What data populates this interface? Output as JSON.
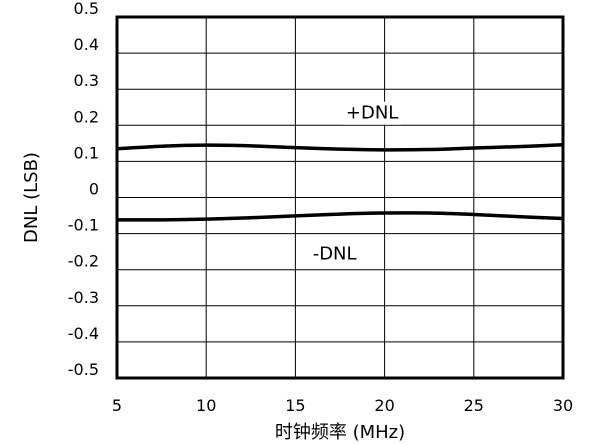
{
  "chart_data": {
    "type": "line",
    "title": "",
    "xlabel": "时钟频率 (MHz)",
    "ylabel": "DNL (LSB)",
    "xlim": [
      5,
      30
    ],
    "ylim": [
      -0.5,
      0.5
    ],
    "x_ticks": [
      5,
      10,
      15,
      20,
      25,
      30
    ],
    "x_tick_labels": [
      "5",
      "10",
      "15",
      "20",
      "25",
      "30"
    ],
    "y_ticks": [
      0.5,
      0.4,
      0.3,
      0.2,
      0.1,
      0,
      -0.1,
      -0.2,
      -0.3,
      -0.4,
      -0.5
    ],
    "y_tick_labels": [
      "0.5",
      "0.4",
      "0.3",
      "0.2",
      "0.1",
      "0",
      "-0.1",
      "-0.2",
      "-0.3",
      "-0.4",
      "-0.5"
    ],
    "grid": true,
    "legend": "none",
    "series": [
      {
        "label": "+DNL",
        "x": [
          5,
          7.5,
          10,
          12.5,
          15,
          17.5,
          20,
          22.5,
          25,
          27.5,
          30
        ],
        "y": [
          0.135,
          0.142,
          0.145,
          0.143,
          0.138,
          0.134,
          0.132,
          0.133,
          0.137,
          0.141,
          0.146
        ]
      },
      {
        "label": "-DNL",
        "x": [
          5,
          7.5,
          10,
          12.5,
          15,
          17.5,
          20,
          22.5,
          25,
          27.5,
          30
        ],
        "y": [
          -0.062,
          -0.062,
          -0.06,
          -0.056,
          -0.051,
          -0.046,
          -0.043,
          -0.043,
          -0.047,
          -0.053,
          -0.058
        ]
      }
    ],
    "annotations": [
      {
        "text": "+DNL",
        "x": 19.3,
        "y": 0.235
      },
      {
        "text": "-DNL",
        "x": 17.2,
        "y": -0.155
      }
    ]
  }
}
